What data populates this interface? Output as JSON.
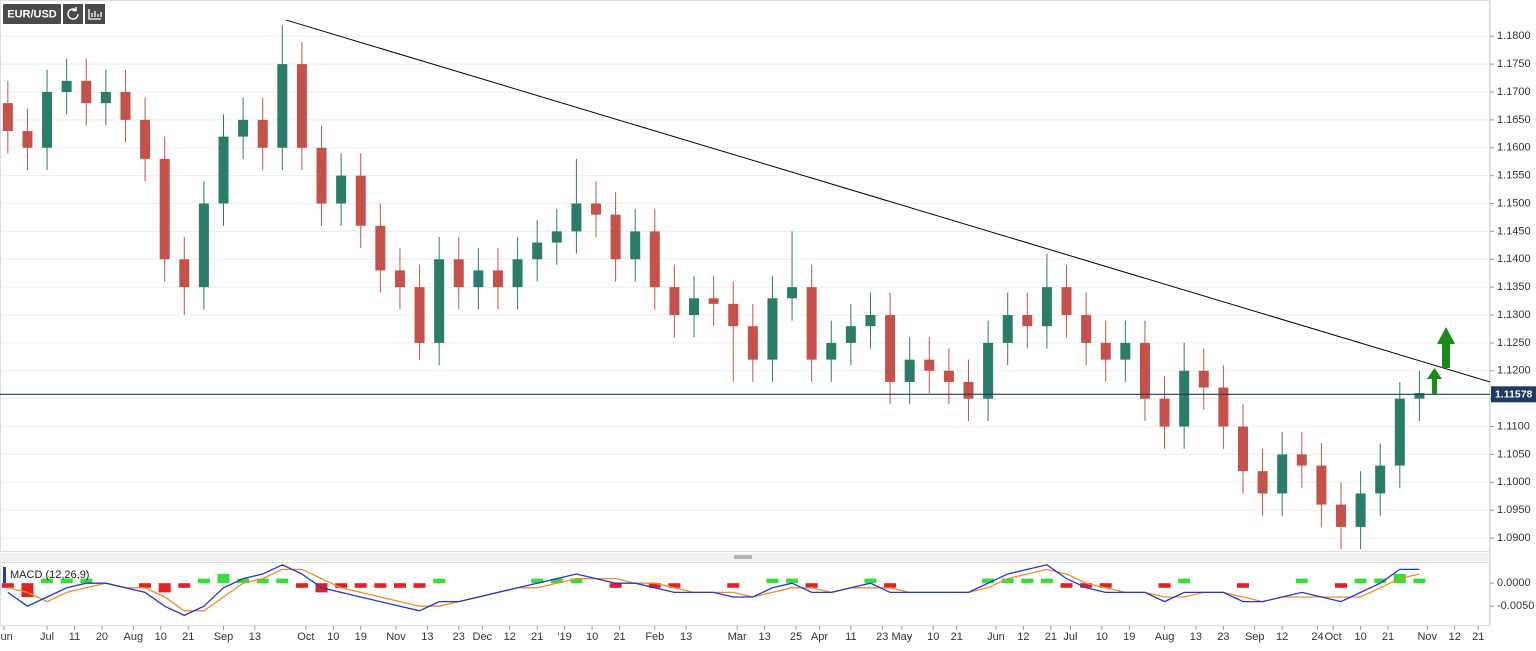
{
  "chart_data": {
    "type": "candlestick",
    "title": "EUR/USD",
    "x": [
      2,
      7,
      12,
      17,
      22,
      27,
      32,
      37,
      42,
      47,
      52,
      57,
      62,
      67,
      72,
      77,
      82,
      87,
      92,
      97,
      102,
      107,
      112,
      117,
      122,
      127,
      132,
      137,
      142,
      147,
      152,
      157,
      162,
      167,
      172,
      177,
      182,
      187,
      192,
      197,
      202,
      207,
      212,
      217,
      222,
      227,
      232,
      237,
      242,
      247,
      252,
      257,
      262,
      267,
      272,
      277,
      282,
      287,
      292,
      297,
      302,
      307,
      312,
      317,
      322,
      327,
      332,
      337,
      342,
      347,
      352,
      357,
      362
    ],
    "open": [
      1.168,
      1.163,
      1.16,
      1.17,
      1.172,
      1.168,
      1.17,
      1.165,
      1.158,
      1.14,
      1.135,
      1.15,
      1.162,
      1.165,
      1.16,
      1.175,
      1.16,
      1.15,
      1.155,
      1.146,
      1.138,
      1.135,
      1.125,
      1.14,
      1.135,
      1.138,
      1.135,
      1.14,
      1.143,
      1.145,
      1.15,
      1.148,
      1.14,
      1.145,
      1.135,
      1.13,
      1.133,
      1.132,
      1.128,
      1.122,
      1.133,
      1.135,
      1.122,
      1.125,
      1.128,
      1.13,
      1.118,
      1.122,
      1.12,
      1.118,
      1.115,
      1.125,
      1.13,
      1.128,
      1.135,
      1.13,
      1.125,
      1.122,
      1.125,
      1.115,
      1.11,
      1.12,
      1.117,
      1.11,
      1.102,
      1.098,
      1.105,
      1.103,
      1.096,
      1.092,
      1.098,
      1.103,
      1.115
    ],
    "high": [
      1.172,
      1.167,
      1.174,
      1.176,
      1.176,
      1.174,
      1.174,
      1.169,
      1.162,
      1.144,
      1.154,
      1.166,
      1.169,
      1.169,
      1.182,
      1.179,
      1.164,
      1.159,
      1.159,
      1.15,
      1.142,
      1.139,
      1.144,
      1.144,
      1.142,
      1.142,
      1.144,
      1.147,
      1.149,
      1.158,
      1.154,
      1.152,
      1.149,
      1.149,
      1.139,
      1.137,
      1.137,
      1.136,
      1.132,
      1.137,
      1.145,
      1.139,
      1.129,
      1.132,
      1.134,
      1.134,
      1.126,
      1.126,
      1.124,
      1.122,
      1.129,
      1.134,
      1.134,
      1.141,
      1.139,
      1.134,
      1.129,
      1.129,
      1.129,
      1.119,
      1.125,
      1.124,
      1.121,
      1.114,
      1.106,
      1.109,
      1.109,
      1.107,
      1.1,
      1.102,
      1.107,
      1.118,
      1.12
    ],
    "low": [
      1.159,
      1.156,
      1.156,
      1.166,
      1.164,
      1.164,
      1.161,
      1.154,
      1.136,
      1.13,
      1.131,
      1.146,
      1.158,
      1.156,
      1.156,
      1.156,
      1.146,
      1.146,
      1.142,
      1.134,
      1.131,
      1.122,
      1.121,
      1.131,
      1.131,
      1.131,
      1.131,
      1.136,
      1.139,
      1.141,
      1.144,
      1.136,
      1.136,
      1.131,
      1.126,
      1.126,
      1.128,
      1.118,
      1.118,
      1.118,
      1.129,
      1.118,
      1.118,
      1.121,
      1.124,
      1.114,
      1.114,
      1.116,
      1.114,
      1.111,
      1.111,
      1.121,
      1.124,
      1.124,
      1.126,
      1.121,
      1.118,
      1.118,
      1.111,
      1.106,
      1.106,
      1.113,
      1.106,
      1.098,
      1.094,
      1.094,
      1.099,
      1.092,
      1.088,
      1.088,
      1.094,
      1.099,
      1.111
    ],
    "close": [
      1.163,
      1.16,
      1.17,
      1.172,
      1.168,
      1.17,
      1.165,
      1.158,
      1.14,
      1.135,
      1.15,
      1.162,
      1.165,
      1.16,
      1.175,
      1.16,
      1.15,
      1.155,
      1.146,
      1.138,
      1.135,
      1.125,
      1.14,
      1.135,
      1.138,
      1.135,
      1.14,
      1.143,
      1.145,
      1.15,
      1.148,
      1.14,
      1.145,
      1.135,
      1.13,
      1.133,
      1.132,
      1.128,
      1.122,
      1.133,
      1.135,
      1.122,
      1.125,
      1.128,
      1.13,
      1.118,
      1.122,
      1.12,
      1.118,
      1.115,
      1.125,
      1.13,
      1.128,
      1.135,
      1.13,
      1.125,
      1.122,
      1.125,
      1.115,
      1.11,
      1.12,
      1.117,
      1.11,
      1.102,
      1.098,
      1.105,
      1.103,
      1.096,
      1.092,
      1.098,
      1.103,
      1.115,
      1.116
    ],
    "up_color": "#2b7d6a",
    "down_color": "#c4524a",
    "xlim": [
      0,
      380
    ],
    "xticks": [
      {
        "value": 1,
        "label": "Jun"
      },
      {
        "value": 12,
        "label": "Jul"
      },
      {
        "value": 19,
        "label": "11"
      },
      {
        "value": 26,
        "label": "20"
      },
      {
        "value": 34,
        "label": "Aug"
      },
      {
        "value": 41,
        "label": "10"
      },
      {
        "value": 48,
        "label": "21"
      },
      {
        "value": 57,
        "label": "Sep"
      },
      {
        "value": 65,
        "label": "13"
      },
      {
        "value": 78,
        "label": "Oct"
      },
      {
        "value": 85,
        "label": "10"
      },
      {
        "value": 92,
        "label": "19"
      },
      {
        "value": 101,
        "label": "Nov"
      },
      {
        "value": 109,
        "label": "13"
      },
      {
        "value": 117,
        "label": "23"
      },
      {
        "value": 123,
        "label": "Dec"
      },
      {
        "value": 130,
        "label": "12"
      },
      {
        "value": 137,
        "label": "21"
      },
      {
        "value": 144,
        "label": "'19"
      },
      {
        "value": 151,
        "label": "10"
      },
      {
        "value": 158,
        "label": "21"
      },
      {
        "value": 167,
        "label": "Feb"
      },
      {
        "value": 175,
        "label": "13"
      },
      {
        "value": 188,
        "label": "Mar"
      },
      {
        "value": 195,
        "label": "13"
      },
      {
        "value": 203,
        "label": "25"
      },
      {
        "value": 209,
        "label": "Apr"
      },
      {
        "value": 217,
        "label": "11"
      },
      {
        "value": 225,
        "label": "23"
      },
      {
        "value": 230,
        "label": "May"
      },
      {
        "value": 238,
        "label": "10"
      },
      {
        "value": 244,
        "label": "21"
      },
      {
        "value": 254,
        "label": "Jun"
      },
      {
        "value": 261,
        "label": "12"
      },
      {
        "value": 268,
        "label": "21"
      },
      {
        "value": 273,
        "label": "Jul"
      },
      {
        "value": 281,
        "label": "10"
      },
      {
        "value": 288,
        "label": "19"
      },
      {
        "value": 297,
        "label": "Aug"
      },
      {
        "value": 305,
        "label": "13"
      },
      {
        "value": 312,
        "label": "23"
      },
      {
        "value": 320,
        "label": "Sep"
      },
      {
        "value": 327,
        "label": "12"
      },
      {
        "value": 336,
        "label": "24"
      },
      {
        "value": 340,
        "label": "Oct"
      },
      {
        "value": 347,
        "label": "10"
      },
      {
        "value": 354,
        "label": "21"
      },
      {
        "value": 364,
        "label": "Nov"
      },
      {
        "value": 371,
        "label": "12"
      },
      {
        "value": 377,
        "label": "21"
      }
    ],
    "ylim": [
      1.0875,
      1.1865
    ],
    "yticks": [
      {
        "value": 1.09,
        "label": "1.0900"
      },
      {
        "value": 1.095,
        "label": "1.0950"
      },
      {
        "value": 1.1,
        "label": "1.1000"
      },
      {
        "value": 1.105,
        "label": "1.1050"
      },
      {
        "value": 1.11,
        "label": "1.1100"
      },
      {
        "value": 1.115,
        "label": "1.1150"
      },
      {
        "value": 1.12,
        "label": "1.1200"
      },
      {
        "value": 1.125,
        "label": "1.1250"
      },
      {
        "value": 1.13,
        "label": "1.1300"
      },
      {
        "value": 1.135,
        "label": "1.1350"
      },
      {
        "value": 1.14,
        "label": "1.1400"
      },
      {
        "value": 1.145,
        "label": "1.1450"
      },
      {
        "value": 1.15,
        "label": "1.1500"
      },
      {
        "value": 1.155,
        "label": "1.1550"
      },
      {
        "value": 1.16,
        "label": "1.1600"
      },
      {
        "value": 1.165,
        "label": "1.1650"
      },
      {
        "value": 1.17,
        "label": "1.1700"
      },
      {
        "value": 1.175,
        "label": "1.1750"
      },
      {
        "value": 1.18,
        "label": "1.1800"
      }
    ],
    "grid": true,
    "current_price": 1.11578,
    "current_price_color": "#1e3a5f",
    "trendline": {
      "x": [
        73,
        380
      ],
      "y": [
        1.1829,
        1.118
      ],
      "color": "#000000"
    },
    "macd": {
      "label": "MACD (12,26,9)",
      "macd": [
        -0.002,
        -0.005,
        -0.003,
        -0.001,
        0.0,
        0.0,
        -0.001,
        -0.002,
        -0.005,
        -0.007,
        -0.005,
        -0.001,
        0.001,
        0.002,
        0.004,
        0.002,
        -0.001,
        -0.002,
        -0.003,
        -0.004,
        -0.005,
        -0.006,
        -0.004,
        -0.004,
        -0.003,
        -0.002,
        -0.001,
        0.0,
        0.001,
        0.002,
        0.001,
        0.0,
        0.0,
        -0.001,
        -0.002,
        -0.002,
        -0.002,
        -0.003,
        -0.003,
        -0.001,
        0.0,
        -0.002,
        -0.002,
        -0.001,
        0.0,
        -0.002,
        -0.002,
        -0.002,
        -0.002,
        -0.002,
        0.0,
        0.002,
        0.003,
        0.004,
        0.001,
        -0.001,
        -0.002,
        -0.002,
        -0.002,
        -0.004,
        -0.002,
        -0.002,
        -0.002,
        -0.004,
        -0.004,
        -0.003,
        -0.002,
        -0.003,
        -0.004,
        -0.002,
        0.0,
        0.003,
        0.003
      ],
      "signal": [
        -0.001,
        -0.002,
        -0.004,
        -0.002,
        -0.001,
        0.0,
        -0.001,
        -0.001,
        -0.003,
        -0.006,
        -0.006,
        -0.003,
        0.0,
        0.001,
        0.003,
        0.003,
        0.001,
        -0.001,
        -0.002,
        -0.003,
        -0.004,
        -0.005,
        -0.005,
        -0.004,
        -0.003,
        -0.002,
        -0.001,
        -0.001,
        0.0,
        0.001,
        0.001,
        0.001,
        0.0,
        0.0,
        -0.001,
        -0.002,
        -0.002,
        -0.002,
        -0.003,
        -0.002,
        -0.001,
        -0.001,
        -0.002,
        -0.001,
        -0.001,
        -0.001,
        -0.002,
        -0.002,
        -0.002,
        -0.002,
        -0.001,
        0.001,
        0.002,
        0.003,
        0.002,
        0.0,
        -0.001,
        -0.002,
        -0.002,
        -0.003,
        -0.003,
        -0.002,
        -0.002,
        -0.003,
        -0.004,
        -0.003,
        -0.003,
        -0.003,
        -0.003,
        -0.003,
        -0.001,
        0.001,
        0.002
      ],
      "histogram": [
        -0.001,
        -0.003,
        0.001,
        0.001,
        0.001,
        0,
        0,
        -0.001,
        -0.002,
        -0.001,
        0.001,
        0.002,
        0.001,
        0.001,
        0.001,
        -0.001,
        -0.002,
        -0.001,
        -0.001,
        -0.001,
        -0.001,
        -0.001,
        0.001,
        0,
        0,
        0,
        0,
        0.001,
        0.001,
        0.001,
        0,
        -0.001,
        0,
        -0.001,
        -0.001,
        0,
        0,
        -0.001,
        0,
        0.001,
        0.001,
        -0.001,
        0,
        0,
        0.001,
        -0.001,
        0,
        0,
        0,
        0,
        0.001,
        0.001,
        0.001,
        0.001,
        -0.001,
        -0.001,
        -0.001,
        0,
        0,
        -0.001,
        0.001,
        0,
        0,
        -0.001,
        0,
        0,
        0.001,
        0,
        -0.001,
        0.001,
        0.001,
        0.002,
        0.001
      ],
      "macd_color": "#2136d6",
      "signal_color": "#f28c28",
      "hist_up_color": "#33e033",
      "hist_down_color": "#e52020",
      "y2lim": [
        -0.0093,
        0.0046
      ],
      "y2ticks": [
        {
          "value": 0,
          "label": "0.0000"
        },
        {
          "value": -0.005,
          "label": "-0.0050"
        }
      ]
    }
  }
}
